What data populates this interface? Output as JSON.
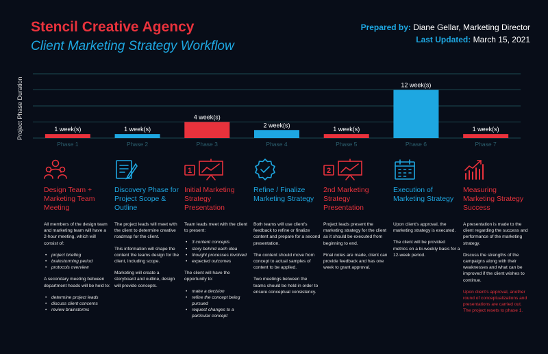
{
  "header": {
    "title": "Stencil Creative Agency",
    "subtitle": "Client Marketing Strategy Workflow",
    "prepared_label": "Prepared by:",
    "prepared_value": "Diane Gellar, Marketing Director",
    "updated_label": "Last Updated:",
    "updated_value": "March 15, 2021"
  },
  "colors": {
    "red": "#e8323c",
    "blue": "#1ea7e1",
    "background": "#080d18"
  },
  "chart_data": {
    "type": "bar",
    "ylabel": "Project  Phase Duration",
    "categories": [
      "Phase 1",
      "Phase 2",
      "Phase 3",
      "Phase 4",
      "Phase 5",
      "Phase 6",
      "Phase 7"
    ],
    "values": [
      1,
      1,
      4,
      2,
      1,
      12,
      1
    ],
    "data_labels": [
      "1 week(s)",
      "1 week(s)",
      "4 week(s)",
      "2 week(s)",
      "1 week(s)",
      "12 week(s)",
      "1 week(s)"
    ],
    "bar_colors": [
      "#e8323c",
      "#1ea7e1",
      "#e8323c",
      "#1ea7e1",
      "#e8323c",
      "#1ea7e1",
      "#e8323c"
    ],
    "ylim": [
      0,
      16
    ],
    "grid": true
  },
  "phases": [
    {
      "icon": "team-icon",
      "title": "Design Team + Marketing Team Meeting",
      "p1": "All members of the design team and marketing team will have a 2-hour meeting, which will consist of:",
      "list1": [
        "project briefing",
        "brainstorming period",
        "protocols overview"
      ],
      "p2": "A secondary meeting between department heads will be held to:",
      "list2": [
        "determine project leads",
        "discuss client concerns",
        "review brainstorms"
      ]
    },
    {
      "icon": "document-pen-icon",
      "title": "Discovery Phase for Project Scope & Outline",
      "p1": "The project leads will meet with the client to determine creative roadmap for the client.",
      "p2": "This information will shape the content the teams design for the client, including scope.",
      "p3": "Marketing will create a storyboard and outline, design will provide concepts."
    },
    {
      "icon": "presentation-1-icon",
      "badge": "1",
      "title": "Initial Marketing Strategy Presentation",
      "p1": "Team leads meet with the client to present:",
      "list1": [
        "3 content concepts",
        "story behind each idea",
        "thought processes involved",
        "expected outcomes"
      ],
      "p2": "The client will have the opportunity to:",
      "list2": [
        "make a decision",
        "refine the concept being pursued",
        "request changes to a particular concept"
      ]
    },
    {
      "icon": "check-badge-icon",
      "title": "Refine / Finalize Marketing Strategy",
      "p1": "Both teams will use client's feedback to refine or finalize content and prepare for a second presentation.",
      "p2": "The content should move from concept to actual samples of content to be applied.",
      "p3": "Two meetings between the teams should be held in order to ensure conceptual consistency."
    },
    {
      "icon": "presentation-2-icon",
      "badge": "2",
      "title": "2nd Marketing Strategy Presentation",
      "p1": "Project leads present the marketing strategy for the client as it should be executed from beginning to end.",
      "p2": "Final notes are made, client can provide feedback and has one week to grant approval."
    },
    {
      "icon": "calendar-icon",
      "title": "Execution of Marketing Strategy",
      "p1": "Upon client's approval, the marketing strategy is executed.",
      "p2": "The client will be provided metrics on a bi-weekly basis for a 12-week period."
    },
    {
      "icon": "growth-chart-icon",
      "title": "Measuring Marketing Strategy Success",
      "p1": "A presentation is made to the client regarding the success and performance of the marketing strategy.",
      "p2": "Discuss the strengths of the campaigns along with their weaknesses and what can be improved if the client wishes to continue.",
      "note": "Upon client's approval, another round of conceptualizations and presentations are carried out. The project resets to phase 1."
    }
  ]
}
